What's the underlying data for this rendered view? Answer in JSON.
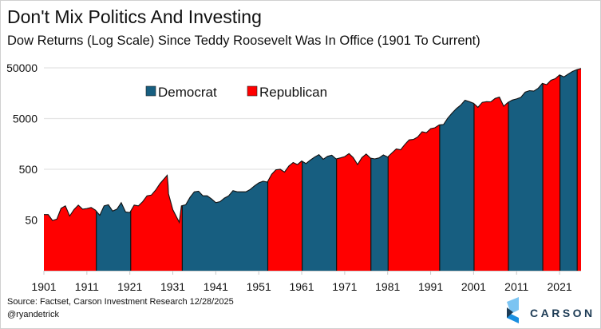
{
  "title": "Don't Mix Politics And Investing",
  "subtitle": "Dow Returns (Log Scale) Since Teddy Roosevelt Was In Office (1901 To Current)",
  "source": "Source: Factset, Carson Investment Research 12/28/2025",
  "handle": "@ryandetrick",
  "logo": "CARSON",
  "colors": {
    "Democrat": "#175e80",
    "Republican": "#ff0000",
    "outline": "#111111",
    "grid": "#e3e3e3"
  },
  "chart_data": {
    "type": "area",
    "title": "Don't Mix Politics And Investing",
    "subtitle": "Dow Returns (Log Scale) Since Teddy Roosevelt Was In Office (1901 To Current)",
    "y_scale": "log",
    "ylim": [
      5,
      50000
    ],
    "xlim": [
      1901,
      2026
    ],
    "grid": true,
    "legend_placement": "top-left",
    "y_ticks": [
      "50",
      "500",
      "5000",
      "50000"
    ],
    "x_ticks": [
      "1901",
      "1911",
      "1921",
      "1931",
      "1941",
      "1951",
      "1961",
      "1971",
      "1981",
      "1991",
      "2001",
      "2011",
      "2021"
    ],
    "legend": [
      "Democrat",
      "Republican"
    ],
    "periods": [
      {
        "party": "Republican",
        "start": 1901,
        "end": 1913.2
      },
      {
        "party": "Democrat",
        "start": 1913.2,
        "end": 1921.2
      },
      {
        "party": "Republican",
        "start": 1921.2,
        "end": 1933.2
      },
      {
        "party": "Democrat",
        "start": 1933.2,
        "end": 1953.1
      },
      {
        "party": "Republican",
        "start": 1953.1,
        "end": 1961.1
      },
      {
        "party": "Democrat",
        "start": 1961.1,
        "end": 1969.1
      },
      {
        "party": "Republican",
        "start": 1969.1,
        "end": 1977.1
      },
      {
        "party": "Democrat",
        "start": 1977.1,
        "end": 1981.1
      },
      {
        "party": "Republican",
        "start": 1981.1,
        "end": 1993.1
      },
      {
        "party": "Democrat",
        "start": 1993.1,
        "end": 2001.1
      },
      {
        "party": "Republican",
        "start": 2001.1,
        "end": 2009.1
      },
      {
        "party": "Democrat",
        "start": 2009.1,
        "end": 2017.1
      },
      {
        "party": "Republican",
        "start": 2017.1,
        "end": 2021.1
      },
      {
        "party": "Democrat",
        "start": 2021.1,
        "end": 2025.1
      },
      {
        "party": "Republican",
        "start": 2025.1,
        "end": 2026
      }
    ],
    "x": [
      1901,
      1902,
      1903,
      1904,
      1905,
      1906,
      1907,
      1908,
      1909,
      1910,
      1911,
      1912,
      1913,
      1914,
      1915,
      1916,
      1917,
      1918,
      1919,
      1920,
      1921,
      1922,
      1923,
      1924,
      1925,
      1926,
      1927,
      1928,
      1929.7,
      1929.9,
      1930,
      1931,
      1932.5,
      1933,
      1934,
      1935,
      1936,
      1937,
      1938,
      1939,
      1940,
      1941,
      1942,
      1943,
      1944,
      1945,
      1946,
      1947,
      1948,
      1949,
      1950,
      1951,
      1952,
      1953,
      1954,
      1955,
      1956,
      1957,
      1958,
      1959,
      1960,
      1961,
      1962,
      1963,
      1964,
      1965,
      1966,
      1967,
      1968,
      1969,
      1970,
      1971,
      1972,
      1973,
      1974,
      1975,
      1976,
      1977,
      1978,
      1979,
      1980,
      1981,
      1982,
      1983,
      1984,
      1985,
      1986,
      1987,
      1988,
      1989,
      1990,
      1991,
      1992,
      1993,
      1994,
      1995,
      1996,
      1997,
      1998,
      1999,
      2000,
      2001,
      2002,
      2003,
      2004,
      2005,
      2006,
      2007,
      2008,
      2009,
      2010,
      2011,
      2012,
      2013,
      2014,
      2015,
      2016,
      2017,
      2018,
      2019,
      2020,
      2021,
      2022,
      2023,
      2024,
      2025,
      2026
    ],
    "values": [
      64,
      64,
      49,
      52,
      85,
      95,
      60,
      80,
      98,
      82,
      84,
      88,
      78,
      62,
      95,
      100,
      75,
      82,
      110,
      72,
      70,
      98,
      95,
      115,
      150,
      155,
      195,
      260,
      381,
      240,
      165,
      80,
      45,
      95,
      100,
      140,
      180,
      185,
      150,
      150,
      130,
      110,
      115,
      135,
      150,
      190,
      180,
      180,
      180,
      200,
      235,
      270,
      290,
      280,
      400,
      490,
      500,
      440,
      580,
      680,
      620,
      730,
      650,
      760,
      870,
      970,
      790,
      900,
      950,
      800,
      840,
      890,
      1020,
      850,
      620,
      850,
      1000,
      830,
      800,
      840,
      960,
      875,
      1050,
      1260,
      1210,
      1550,
      1900,
      1940,
      2170,
      2750,
      2630,
      3170,
      3300,
      3750,
      3830,
      5120,
      6450,
      7900,
      9180,
      11500,
      10790,
      10020,
      8340,
      10450,
      10780,
      10720,
      12460,
      13260,
      8780,
      10430,
      11580,
      12220,
      13100,
      16580,
      17820,
      17420,
      19760,
      24720,
      23330,
      28540,
      30600,
      36340,
      33150,
      37690,
      42540,
      46000,
      48500
    ]
  }
}
